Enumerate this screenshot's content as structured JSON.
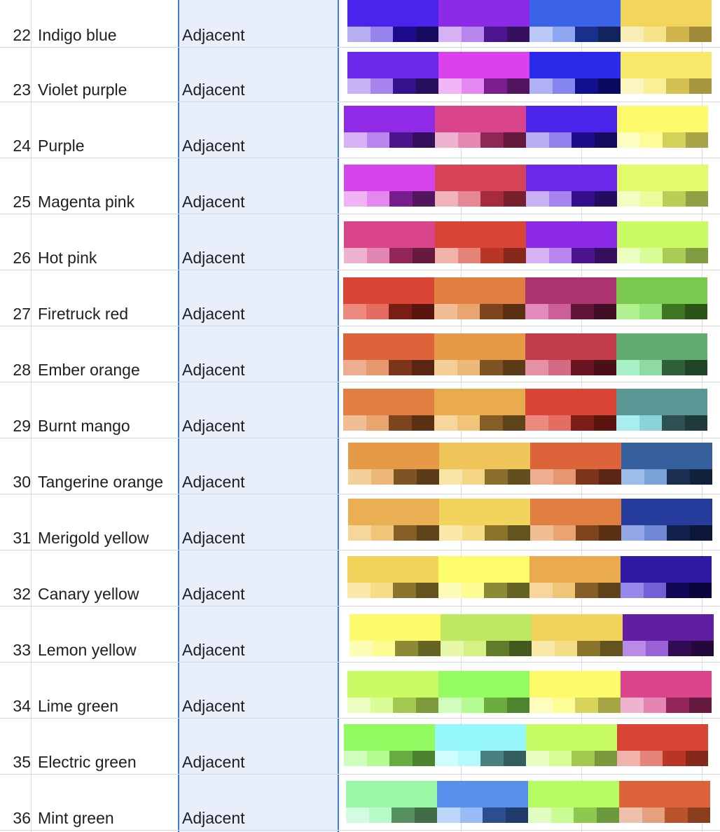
{
  "sheet": {
    "scheme_column_label": "Adjacent",
    "rows": [
      {
        "num": "22",
        "name": "Indigo blue",
        "scheme": "Adjacent",
        "swatches": [
          {
            "main": "#4a24ea",
            "shades": [
              "#b7aef2",
              "#9783ee",
              "#1d0a8c",
              "#160a5e"
            ]
          },
          {
            "main": "#8b2be6",
            "shades": [
              "#d6b2f5",
              "#b787ee",
              "#4e1590",
              "#35105e"
            ]
          },
          {
            "main": "#3a63e8",
            "shades": [
              "#b9c8f7",
              "#8fa7f0",
              "#182f8c",
              "#12235e"
            ]
          },
          {
            "main": "#f2d55c",
            "shades": [
              "#f8eeb7",
              "#f5e38a",
              "#cfb34c",
              "#a08a3a"
            ]
          }
        ]
      },
      {
        "num": "23",
        "name": "Violet purple",
        "scheme": "Adjacent",
        "swatches": [
          {
            "main": "#6a28ea",
            "shades": [
              "#c7b2f5",
              "#a885ee",
              "#36128c",
              "#25105e"
            ]
          },
          {
            "main": "#d942ec",
            "shades": [
              "#f0b6f6",
              "#e588f0",
              "#7a1e8c",
              "#53165e"
            ]
          },
          {
            "main": "#2a2aeb",
            "shades": [
              "#b0b0f5",
              "#8585ef",
              "#10108c",
              "#0a0a5e"
            ]
          },
          {
            "main": "#f8e869",
            "shades": [
              "#fbf5c0",
              "#f9ef96",
              "#d4c154",
              "#a6963f"
            ]
          }
        ]
      },
      {
        "num": "24",
        "name": "Purple",
        "scheme": "Adjacent",
        "swatches": [
          {
            "main": "#8f2ae6",
            "shades": [
              "#d6b1f5",
              "#b985ee",
              "#4c148c",
              "#350f5e"
            ]
          },
          {
            "main": "#d9448a",
            "shades": [
              "#efb3cf",
              "#e588b4",
              "#8e2656",
              "#62193b"
            ]
          },
          {
            "main": "#4b25ea",
            "shades": [
              "#b9adf3",
              "#9483ee",
              "#1d0c8c",
              "#140a5e"
            ]
          },
          {
            "main": "#fdfb6c",
            "shades": [
              "#fefdc0",
              "#fdfc96",
              "#d4d158",
              "#a6a447"
            ]
          }
        ]
      },
      {
        "num": "25",
        "name": "Magenta pink",
        "scheme": "Adjacent",
        "swatches": [
          {
            "main": "#d842ec",
            "shades": [
              "#f0b4f6",
              "#e488f0",
              "#781e8c",
              "#52165e"
            ]
          },
          {
            "main": "#d74457",
            "shades": [
              "#efb3bb",
              "#e48896",
              "#a42c3b",
              "#75202b"
            ]
          },
          {
            "main": "#6b27ea",
            "shades": [
              "#c6b1f5",
              "#a685ee",
              "#34108c",
              "#240c5e"
            ]
          },
          {
            "main": "#e2fb6a",
            "shades": [
              "#f3fdc3",
              "#ebfc98",
              "#bccd57",
              "#939f44"
            ]
          }
        ]
      },
      {
        "num": "26",
        "name": "Hot pink",
        "scheme": "Adjacent",
        "swatches": [
          {
            "main": "#d9448a",
            "shades": [
              "#efb3cf",
              "#e486b2",
              "#922658",
              "#661a3d"
            ]
          },
          {
            "main": "#d94434",
            "shades": [
              "#efb3ac",
              "#e48478",
              "#b83626",
              "#87281c"
            ]
          },
          {
            "main": "#8d2ae7",
            "shades": [
              "#d6b2f5",
              "#b985ee",
              "#4c148c",
              "#350f5e"
            ]
          },
          {
            "main": "#cbfb64",
            "shades": [
              "#ebfdc0",
              "#dafc96",
              "#a8cc56",
              "#809c41"
            ]
          }
        ]
      },
      {
        "num": "27",
        "name": "Firetruck red",
        "scheme": "Adjacent",
        "swatches": [
          {
            "main": "#d94434",
            "shades": [
              "#ec8a80",
              "#e46c60",
              "#7a1e15",
              "#5a150e"
            ]
          },
          {
            "main": "#e07f41",
            "shades": [
              "#f0bd94",
              "#e9a46f",
              "#7e441d",
              "#5b3114"
            ]
          },
          {
            "main": "#ac3270",
            "shades": [
              "#e08abd",
              "#cc5e9a",
              "#5e1536",
              "#420e26"
            ]
          },
          {
            "main": "#79c94f",
            "shades": [
              "#b1f08e",
              "#98e27a",
              "#3f7624",
              "#2b5518"
            ]
          }
        ]
      },
      {
        "num": "28",
        "name": "Ember orange",
        "scheme": "Adjacent",
        "swatches": [
          {
            "main": "#dd643a",
            "shades": [
              "#eeac90",
              "#e79770",
              "#7c351b",
              "#5a2512"
            ]
          },
          {
            "main": "#e69a47",
            "shades": [
              "#f4cf9a",
              "#eeb978",
              "#7f5424",
              "#5c3c18"
            ]
          },
          {
            "main": "#c23c4c",
            "shades": [
              "#e592a6",
              "#d46b84",
              "#6a1622",
              "#4b0f18"
            ]
          },
          {
            "main": "#63ac6f",
            "shades": [
              "#a8f0c8",
              "#8edaa4",
              "#2f6038",
              "#204427"
            ]
          }
        ]
      },
      {
        "num": "29",
        "name": "Burnt mango",
        "scheme": "Adjacent",
        "swatches": [
          {
            "main": "#e07f41",
            "shades": [
              "#f0bd94",
              "#e9a46f",
              "#7e441d",
              "#5b3114"
            ]
          },
          {
            "main": "#eaab4e",
            "shades": [
              "#f6d69c",
              "#f0c57a",
              "#845e26",
              "#5f431a"
            ]
          },
          {
            "main": "#d94434",
            "shades": [
              "#ec8a80",
              "#e46c60",
              "#7a1e15",
              "#5a150e"
            ]
          },
          {
            "main": "#5a9693",
            "shades": [
              "#a8eef0",
              "#8ad3d8",
              "#2d5050",
              "#1f3a3b"
            ]
          }
        ]
      },
      {
        "num": "30",
        "name": "Tangerine orange",
        "scheme": "Adjacent",
        "swatches": [
          {
            "main": "#e69a47",
            "shades": [
              "#f4cf9a",
              "#eeb978",
              "#7f5424",
              "#5c3c18"
            ]
          },
          {
            "main": "#efc55a",
            "shades": [
              "#f8e4a6",
              "#f3d584",
              "#8a6e2b",
              "#634f1e"
            ]
          },
          {
            "main": "#dd643a",
            "shades": [
              "#eeac90",
              "#e79770",
              "#7c351b",
              "#5a2512"
            ]
          },
          {
            "main": "#365f9e",
            "shades": [
              "#9ebcea",
              "#7aa2d6",
              "#1a2e52",
              "#12213b"
            ]
          }
        ]
      },
      {
        "num": "31",
        "name": "Merigold yellow",
        "scheme": "Adjacent",
        "swatches": [
          {
            "main": "#eaaf52",
            "shades": [
              "#f6d69c",
              "#f0c57a",
              "#845e26",
              "#5f431a"
            ]
          },
          {
            "main": "#f2d35c",
            "shades": [
              "#f9e8a8",
              "#f5dc86",
              "#8a742c",
              "#63531f"
            ]
          },
          {
            "main": "#e07f41",
            "shades": [
              "#f0bd94",
              "#e9a46f",
              "#7e441d",
              "#5b3114"
            ]
          },
          {
            "main": "#263d9e",
            "shades": [
              "#92a6e8",
              "#7088d4",
              "#12204e",
              "#0c1638"
            ]
          }
        ]
      },
      {
        "num": "32",
        "name": "Canary yellow",
        "scheme": "Adjacent",
        "swatches": [
          {
            "main": "#f2d35c",
            "shades": [
              "#f9e8a8",
              "#f5dc86",
              "#8a742c",
              "#63531f"
            ]
          },
          {
            "main": "#fdfc6b",
            "shades": [
              "#fefdb8",
              "#fdfc92",
              "#8c8a34",
              "#666424"
            ]
          },
          {
            "main": "#eaab4e",
            "shades": [
              "#f6d69c",
              "#f0c57a",
              "#845e26",
              "#5f431a"
            ]
          },
          {
            "main": "#2e1aa3",
            "shades": [
              "#9588e8",
              "#7460d6",
              "#100852",
              "#0a053b"
            ]
          }
        ]
      },
      {
        "num": "33",
        "name": "Lemon yellow",
        "scheme": "Adjacent",
        "swatches": [
          {
            "main": "#fdfb6b",
            "shades": [
              "#fefdb4",
              "#fdfc90",
              "#8c8a34",
              "#666424"
            ]
          },
          {
            "main": "#bfe862",
            "shades": [
              "#e6f7a8",
              "#d5f184",
              "#5f7c2c",
              "#44591f"
            ]
          },
          {
            "main": "#f2d35c",
            "shades": [
              "#f9e8a8",
              "#f5dc86",
              "#8a742c",
              "#63531f"
            ]
          },
          {
            "main": "#621ea3",
            "shades": [
              "#b98ae8",
              "#9a60d6",
              "#310c52",
              "#22083b"
            ]
          }
        ]
      },
      {
        "num": "34",
        "name": "Lime green",
        "scheme": "Adjacent",
        "swatches": [
          {
            "main": "#cbfb64",
            "shades": [
              "#ebfdc0",
              "#dafc96",
              "#a4c74f",
              "#7c993c"
            ]
          },
          {
            "main": "#95fb62",
            "shades": [
              "#d1fdbc",
              "#b4fc92",
              "#6aae40",
              "#4f8430"
            ]
          },
          {
            "main": "#fdfb6b",
            "shades": [
              "#fefdc0",
              "#fdfc96",
              "#d6d45a",
              "#a8a546"
            ]
          },
          {
            "main": "#d9448a",
            "shades": [
              "#efb3cf",
              "#e486b2",
              "#922658",
              "#661a3d"
            ]
          }
        ]
      },
      {
        "num": "35",
        "name": "Electric green",
        "scheme": "Adjacent",
        "swatches": [
          {
            "main": "#93fb62",
            "shades": [
              "#cffdbc",
              "#b2fc92",
              "#68ac40",
              "#4d8230"
            ]
          },
          {
            "main": "#96f8fb",
            "shades": [
              "#cffcfd",
              "#b4fafc",
              "#4a8080",
              "#355c5e"
            ]
          },
          {
            "main": "#c7fb64",
            "shades": [
              "#e9fdc0",
              "#d8fc96",
              "#a2c84f",
              "#7a993c"
            ]
          },
          {
            "main": "#d94434",
            "shades": [
              "#efb3ac",
              "#e48478",
              "#b83626",
              "#87281c"
            ]
          }
        ]
      },
      {
        "num": "36",
        "name": "Mint green",
        "scheme": "Adjacent",
        "swatches": [
          {
            "main": "#98f8a6",
            "shades": [
              "#d1fce0",
              "#b6fac8",
              "#56905f",
              "#406c47"
            ]
          },
          {
            "main": "#5890ee",
            "shades": [
              "#bed6fa",
              "#98baf5",
              "#2c4e8e",
              "#203a6a"
            ]
          },
          {
            "main": "#b5fb62",
            "shades": [
              "#e1fdc0",
              "#cafc96",
              "#8fc84f",
              "#6b993c"
            ]
          },
          {
            "main": "#dd643a",
            "shades": [
              "#ecc0aa",
              "#e5a080",
              "#b8542c",
              "#8a3d1f"
            ]
          }
        ]
      }
    ]
  }
}
